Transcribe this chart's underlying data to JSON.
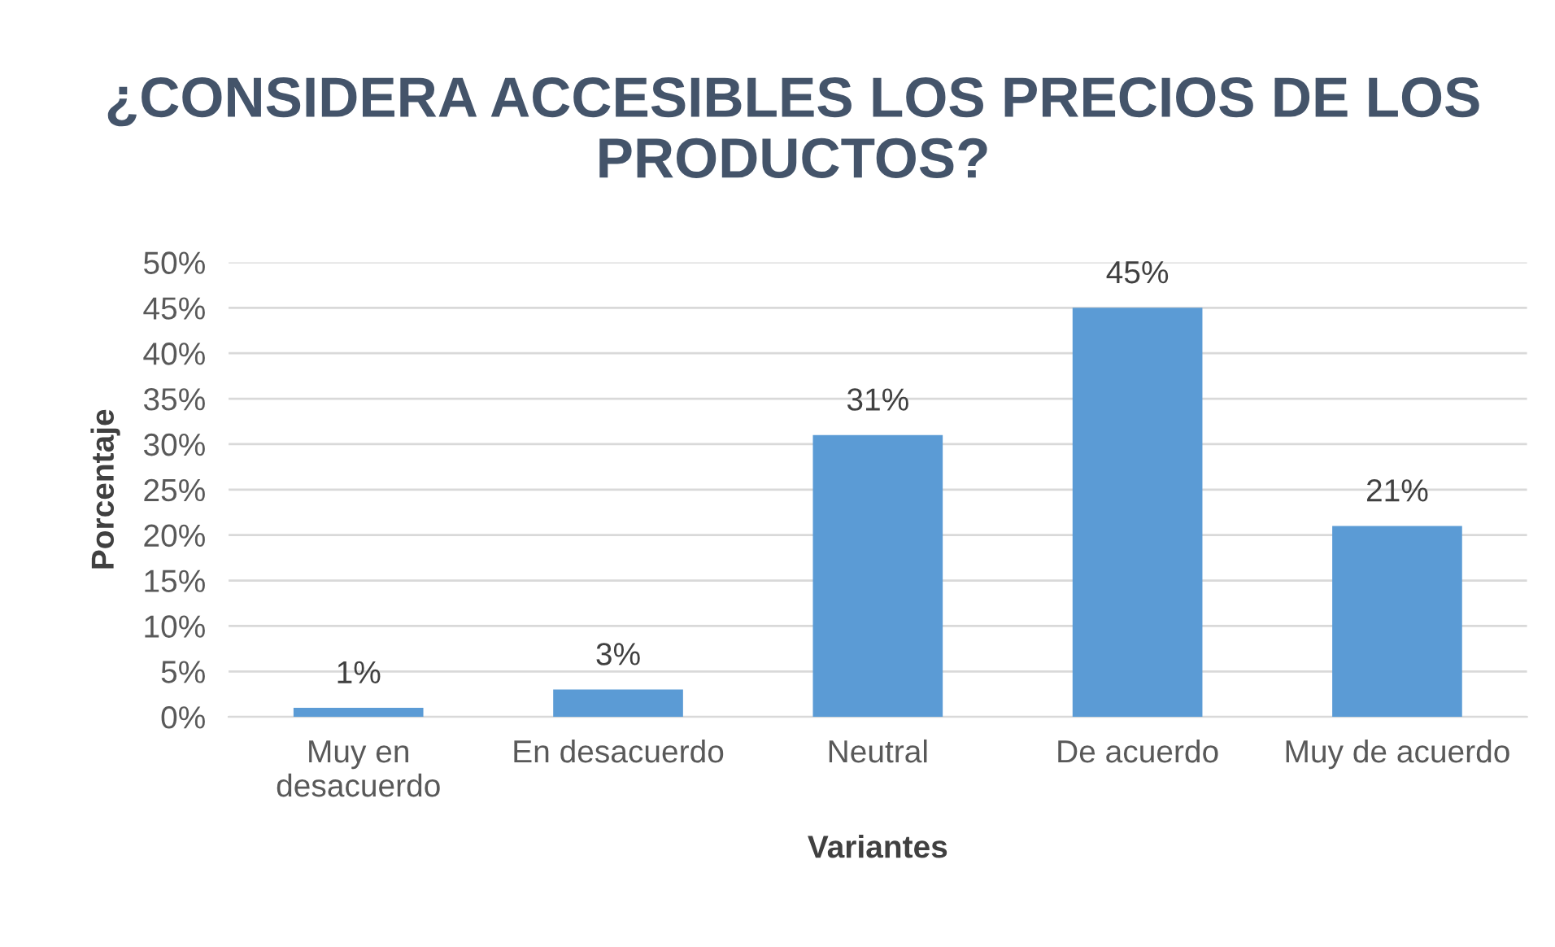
{
  "chart_data": {
    "type": "bar",
    "title": "¿CONSIDERA ACCESIBLES LOS PRECIOS DE LOS PRODUCTOS?",
    "xlabel": "Variantes",
    "ylabel": "Porcentaje",
    "categories": [
      "Muy en\ndesacuerdo",
      "En desacuerdo",
      "Neutral",
      "De acuerdo",
      "Muy de acuerdo"
    ],
    "values": [
      1,
      3,
      31,
      45,
      21
    ],
    "value_labels": [
      "1%",
      "3%",
      "31%",
      "45%",
      "21%"
    ],
    "color": "#5b9bd5",
    "ylim": [
      0,
      50
    ],
    "yticks": [
      {
        "value": 0,
        "label": "0%"
      },
      {
        "value": 5,
        "label": "5%"
      },
      {
        "value": 10,
        "label": "10%"
      },
      {
        "value": 15,
        "label": "15%"
      },
      {
        "value": 20,
        "label": "20%"
      },
      {
        "value": 25,
        "label": "25%"
      },
      {
        "value": 30,
        "label": "30%"
      },
      {
        "value": 35,
        "label": "35%"
      },
      {
        "value": 40,
        "label": "40%"
      },
      {
        "value": 45,
        "label": "45%"
      },
      {
        "value": 50,
        "label": "50%"
      }
    ],
    "grid": "y",
    "legend": false
  }
}
